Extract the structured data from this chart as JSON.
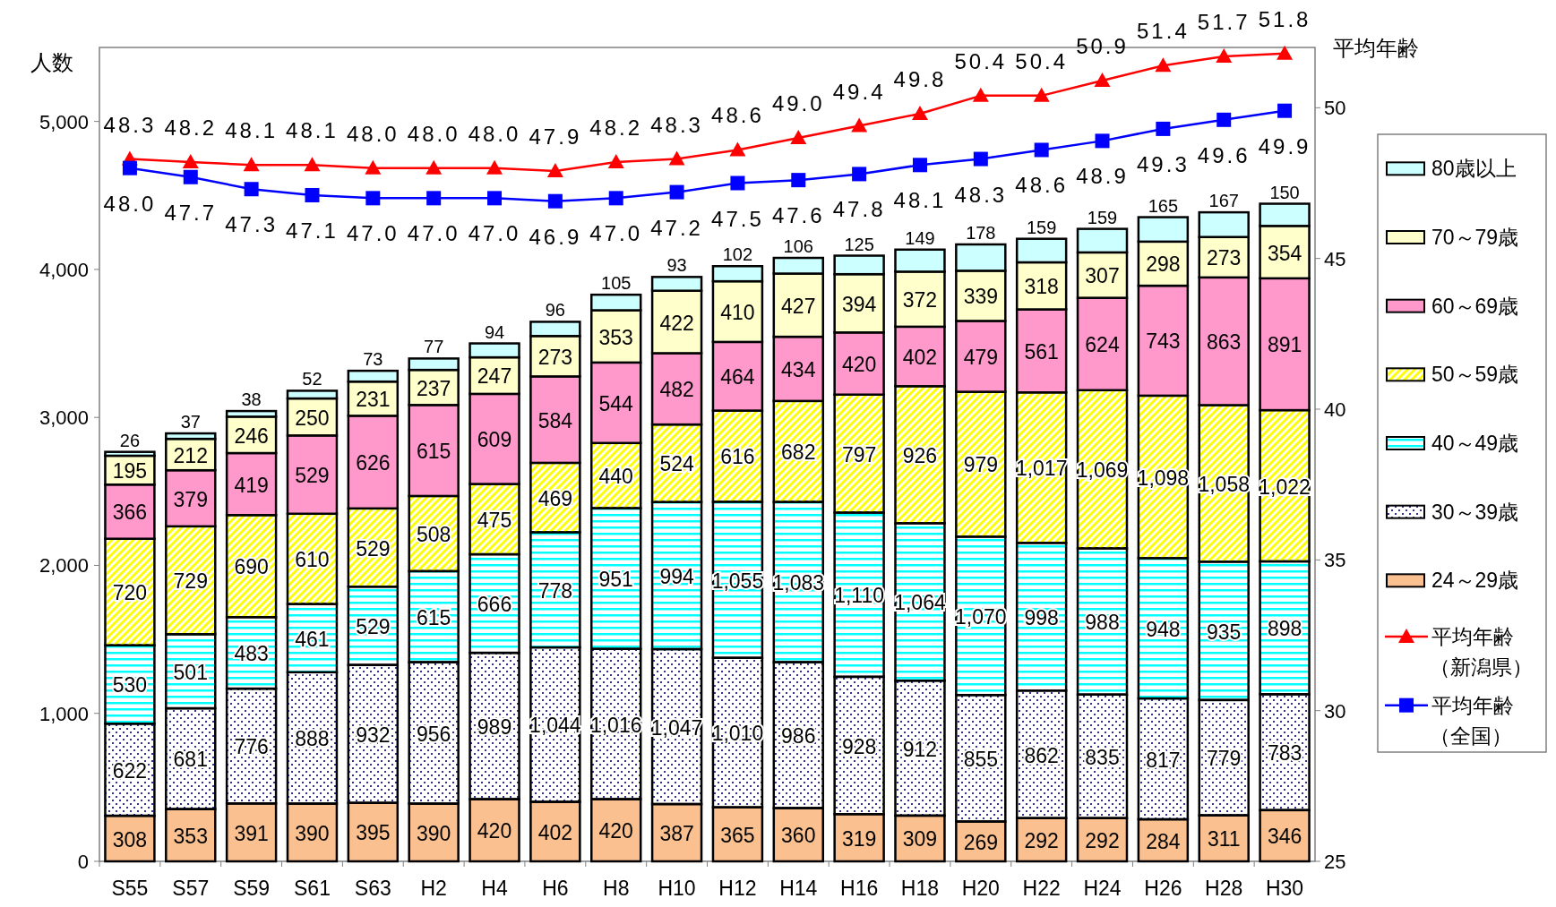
{
  "chart_data": {
    "type": "bar",
    "stacked": true,
    "ylabel": "人数",
    "y2label": "平均年齢",
    "categories": [
      "S55",
      "S57",
      "S59",
      "S61",
      "S63",
      "H2",
      "H4",
      "H6",
      "H8",
      "H10",
      "H12",
      "H14",
      "H16",
      "H18",
      "H20",
      "H22",
      "H24",
      "H26",
      "H28",
      "H30"
    ],
    "series": [
      {
        "name": "24～29歳",
        "color": "#fac090",
        "values": [
          308,
          353,
          391,
          390,
          395,
          390,
          420,
          402,
          420,
          387,
          365,
          360,
          319,
          309,
          269,
          292,
          292,
          284,
          311,
          346
        ]
      },
      {
        "name": "30～39歳",
        "color": "#000080",
        "values": [
          622,
          681,
          776,
          888,
          932,
          956,
          989,
          1044,
          1016,
          1047,
          1010,
          986,
          928,
          912,
          855,
          862,
          835,
          817,
          779,
          783
        ],
        "value_labels": [
          "622",
          "681",
          "776",
          "888",
          "932",
          "956",
          "989",
          "1,044",
          "1,016",
          "1,047",
          "1,010",
          "986",
          "928",
          "912",
          "855",
          "862",
          "835",
          "817",
          "779",
          "783"
        ]
      },
      {
        "name": "40～49歳",
        "color": "#00ffff",
        "values": [
          530,
          501,
          483,
          461,
          529,
          615,
          666,
          778,
          951,
          994,
          1055,
          1083,
          1110,
          1064,
          1070,
          998,
          988,
          948,
          935,
          898
        ],
        "value_labels": [
          "530",
          "501",
          "483",
          "461",
          "529",
          "615",
          "666",
          "778",
          "951",
          "994",
          "1,055",
          "1,083",
          "1,110",
          "1,064",
          "1,070",
          "998",
          "988",
          "948",
          "935",
          "898"
        ]
      },
      {
        "name": "50～59歳",
        "color": "#ffff00",
        "values": [
          720,
          729,
          690,
          610,
          529,
          508,
          475,
          469,
          440,
          524,
          616,
          682,
          797,
          926,
          979,
          1017,
          1069,
          1098,
          1058,
          1022
        ],
        "value_labels": [
          "720",
          "729",
          "690",
          "610",
          "529",
          "508",
          "475",
          "469",
          "440",
          "524",
          "616",
          "682",
          "797",
          "926",
          "979",
          "1,017",
          "1,069",
          "1,098",
          "1,058",
          "1,022"
        ]
      },
      {
        "name": "60～69歳",
        "color": "#ff99cc",
        "values": [
          366,
          379,
          419,
          529,
          626,
          615,
          609,
          584,
          544,
          482,
          464,
          434,
          420,
          402,
          479,
          561,
          624,
          743,
          863,
          891
        ]
      },
      {
        "name": "70～79歳",
        "color": "#ffffcc",
        "values": [
          195,
          212,
          246,
          250,
          231,
          237,
          247,
          273,
          353,
          422,
          410,
          427,
          394,
          372,
          339,
          318,
          307,
          298,
          273,
          354
        ]
      },
      {
        "name": "80歳以上",
        "color": "#ccffff",
        "values": [
          26,
          37,
          38,
          52,
          73,
          77,
          94,
          96,
          105,
          93,
          102,
          106,
          125,
          149,
          178,
          159,
          159,
          165,
          167,
          150
        ]
      },
      {
        "name": "平均年齢（新潟県）",
        "type": "line",
        "axis": "y2",
        "marker": "triangle",
        "color": "#ff0000",
        "values": [
          48.3,
          48.2,
          48.1,
          48.1,
          48.0,
          48.0,
          48.0,
          47.9,
          48.2,
          48.3,
          48.6,
          49.0,
          49.4,
          49.8,
          50.4,
          50.4,
          50.9,
          51.4,
          51.7,
          51.8
        ],
        "value_labels": [
          "48.3",
          "48.2",
          "48.1",
          "48.1",
          "48.0",
          "48.0",
          "48.0",
          "47.9",
          "48.2",
          "48.3",
          "48.6",
          "49.0",
          "49.4",
          "49.8",
          "50.4",
          "50.4",
          "50.9",
          "51.4",
          "51.7",
          "51.8"
        ]
      },
      {
        "name": "平均年齢（全国）",
        "type": "line",
        "axis": "y2",
        "marker": "square",
        "color": "#0000ff",
        "values": [
          48.0,
          47.7,
          47.3,
          47.1,
          47.0,
          47.0,
          47.0,
          46.9,
          47.0,
          47.2,
          47.5,
          47.6,
          47.8,
          48.1,
          48.3,
          48.6,
          48.9,
          49.3,
          49.6,
          49.9
        ],
        "value_labels": [
          "48.0",
          "47.7",
          "47.3",
          "47.1",
          "47.0",
          "47.0",
          "47.0",
          "46.9",
          "47.0",
          "47.2",
          "47.5",
          "47.6",
          "47.8",
          "48.1",
          "48.3",
          "48.6",
          "48.9",
          "49.3",
          "49.6",
          "49.9"
        ]
      }
    ],
    "ylim": [
      0,
      5500
    ],
    "yticks": [
      {
        "value": 0,
        "label": "0"
      },
      {
        "value": 1000,
        "label": "1,000"
      },
      {
        "value": 2000,
        "label": "2,000"
      },
      {
        "value": 3000,
        "label": "3,000"
      },
      {
        "value": 4000,
        "label": "4,000"
      },
      {
        "value": 5000,
        "label": "5,000"
      }
    ],
    "y2lim": [
      25,
      52
    ],
    "y2ticks": [
      25,
      30,
      35,
      40,
      45,
      50
    ],
    "data_labels": true,
    "legend": "right",
    "grid": false
  }
}
